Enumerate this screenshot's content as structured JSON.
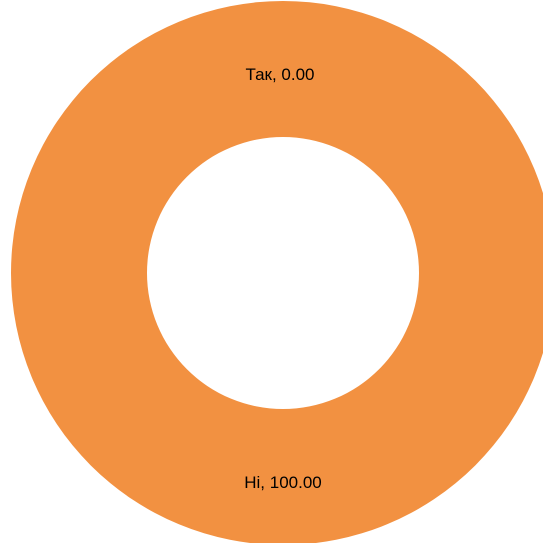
{
  "chart_data": {
    "type": "pie",
    "variant": "donut",
    "title": "",
    "legend": "none",
    "slices": [
      {
        "name": "Так",
        "value": 0.0,
        "label": "Так, 0.00",
        "color": "#f29141"
      },
      {
        "name": "Ні",
        "value": 100.0,
        "label": "Ні, 100.00",
        "color": "#f29141"
      }
    ]
  }
}
